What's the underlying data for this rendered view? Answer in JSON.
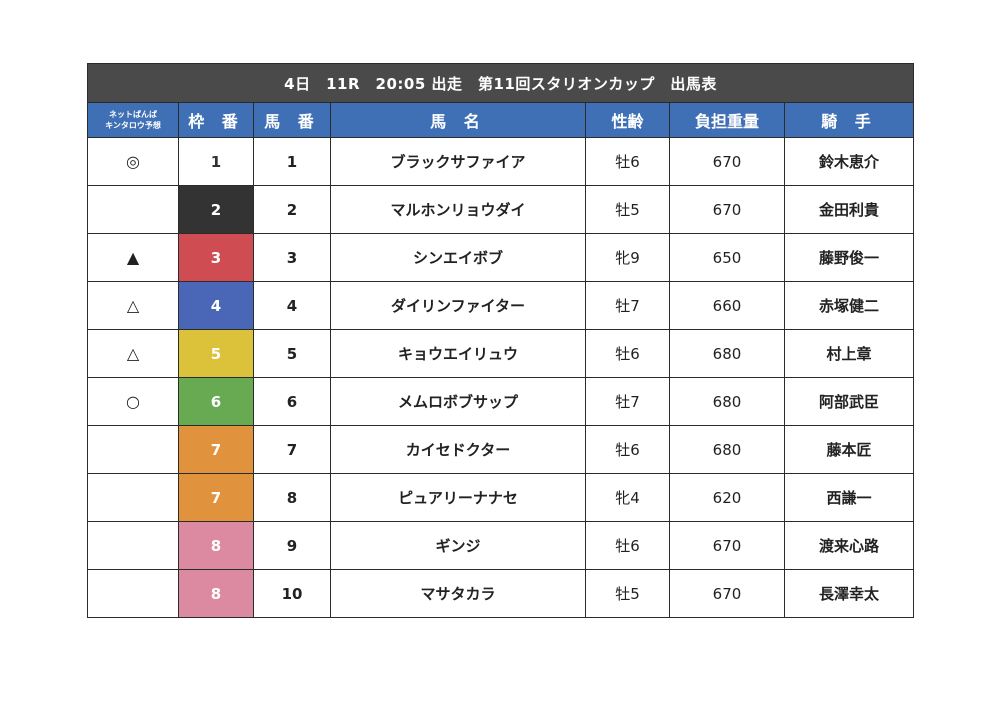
{
  "title": "4日　11R　20:05 出走　第11回スタリオンカップ　出馬表",
  "headers": {
    "prediction": "ネットばんば\nキンタロウ予想",
    "waku": "枠 番",
    "umaban": "馬 番",
    "horse": "馬 名",
    "sexage": "性齢",
    "weight": "負担重量",
    "jockey": "騎 手"
  },
  "rows": [
    {
      "mark": "◎",
      "waku": "1",
      "umaban": "1",
      "horse": "ブラックサファイア",
      "sexage": "牡6",
      "weight": "670",
      "jockey": "鈴木恵介",
      "waku_color": "#ffffff"
    },
    {
      "mark": "",
      "waku": "2",
      "umaban": "2",
      "horse": "マルホンリョウダイ",
      "sexage": "牡5",
      "weight": "670",
      "jockey": "金田利貴",
      "waku_color": "#333333"
    },
    {
      "mark": "▲",
      "waku": "3",
      "umaban": "3",
      "horse": "シンエイボブ",
      "sexage": "牝9",
      "weight": "650",
      "jockey": "藤野俊一",
      "waku_color": "#cf4d52"
    },
    {
      "mark": "△",
      "waku": "4",
      "umaban": "4",
      "horse": "ダイリンファイター",
      "sexage": "牡7",
      "weight": "660",
      "jockey": "赤塚健二",
      "waku_color": "#4a67b7"
    },
    {
      "mark": "△",
      "waku": "5",
      "umaban": "5",
      "horse": "キョウエイリュウ",
      "sexage": "牡6",
      "weight": "680",
      "jockey": "村上章",
      "waku_color": "#dcc23a"
    },
    {
      "mark": "○",
      "waku": "6",
      "umaban": "6",
      "horse": "メムロボブサップ",
      "sexage": "牡7",
      "weight": "680",
      "jockey": "阿部武臣",
      "waku_color": "#67aa52"
    },
    {
      "mark": "",
      "waku": "7",
      "umaban": "7",
      "horse": "カイセドクター",
      "sexage": "牡6",
      "weight": "680",
      "jockey": "藤本匠",
      "waku_color": "#e0933c"
    },
    {
      "mark": "",
      "waku": "7",
      "umaban": "8",
      "horse": "ピュアリーナナセ",
      "sexage": "牝4",
      "weight": "620",
      "jockey": "西謙一",
      "waku_color": "#e0933c"
    },
    {
      "mark": "",
      "waku": "8",
      "umaban": "9",
      "horse": "ギンジ",
      "sexage": "牡6",
      "weight": "670",
      "jockey": "渡来心路",
      "waku_color": "#dc8aa2"
    },
    {
      "mark": "",
      "waku": "8",
      "umaban": "10",
      "horse": "マサタカラ",
      "sexage": "牡5",
      "weight": "670",
      "jockey": "長澤幸太",
      "waku_color": "#dc8aa2"
    }
  ]
}
